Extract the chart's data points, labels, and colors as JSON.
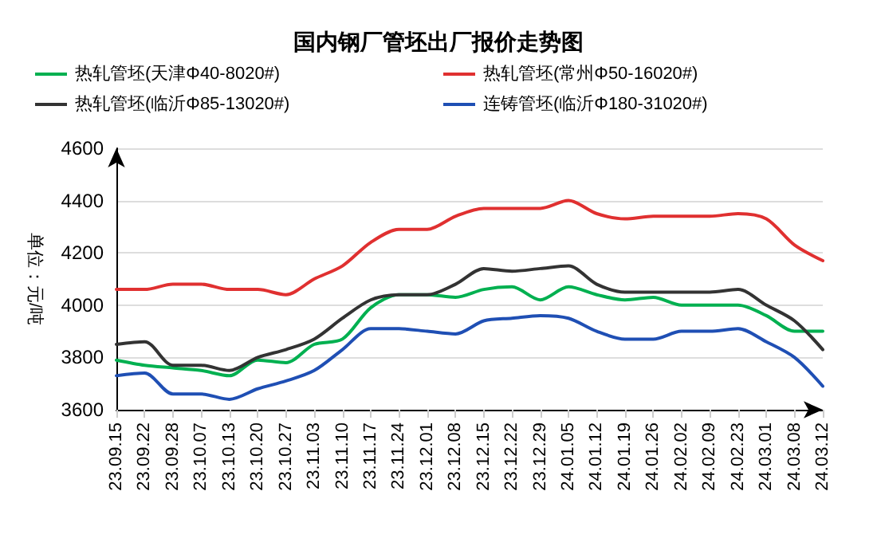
{
  "chart_data": {
    "type": "line",
    "title": "国内钢厂管坯出厂报价走势图",
    "ylabel": "单位：元/吨",
    "categories": [
      "23.09.15",
      "23.09.22",
      "23.09.28",
      "23.10.07",
      "23.10.13",
      "23.10.20",
      "23.10.27",
      "23.11.03",
      "23.11.10",
      "23.11.17",
      "23.11.24",
      "23.12.01",
      "23.12.08",
      "23.12.15",
      "23.12.22",
      "23.12.29",
      "24.01.05",
      "24.01.12",
      "24.01.19",
      "24.01.26",
      "24.02.02",
      "24.02.09",
      "24.02.23",
      "24.03.01",
      "24.03.08",
      "24.03.12"
    ],
    "series": [
      {
        "name": "热轧管坯(天津Φ40-8020#)",
        "color": "#00b050",
        "values": [
          3790,
          3770,
          3760,
          3750,
          3730,
          3790,
          3780,
          3850,
          3870,
          3990,
          4040,
          4040,
          4030,
          4060,
          4070,
          4020,
          4070,
          4040,
          4020,
          4030,
          4000,
          4000,
          4000,
          3960,
          3900,
          3900
        ]
      },
      {
        "name": "热轧管坯(常州Φ50-16020#)",
        "color": "#e03030",
        "values": [
          4060,
          4060,
          4080,
          4080,
          4060,
          4060,
          4040,
          4100,
          4150,
          4240,
          4290,
          4290,
          4340,
          4370,
          4370,
          4370,
          4400,
          4350,
          4330,
          4340,
          4340,
          4340,
          4350,
          4330,
          4230,
          4170
        ]
      },
      {
        "name": "热轧管坯(临沂Φ85-13020#)",
        "color": "#333333",
        "values": [
          3850,
          3860,
          3770,
          3770,
          3750,
          3800,
          3830,
          3870,
          3950,
          4020,
          4040,
          4040,
          4080,
          4140,
          4130,
          4140,
          4150,
          4080,
          4050,
          4050,
          4050,
          4050,
          4060,
          4000,
          3940,
          3830
        ]
      },
      {
        "name": "连铸管坯(临沂Φ180-31020#)",
        "color": "#1f4fb4",
        "values": [
          3730,
          3740,
          3660,
          3660,
          3640,
          3680,
          3710,
          3750,
          3830,
          3910,
          3910,
          3900,
          3890,
          3940,
          3950,
          3960,
          3950,
          3900,
          3870,
          3870,
          3900,
          3900,
          3910,
          3860,
          3800,
          3690
        ]
      }
    ],
    "ylim": [
      3600,
      4600
    ],
    "yticks": [
      3600,
      3800,
      4000,
      4200,
      4400,
      4600
    ],
    "grid": "y",
    "legend": "top",
    "marker": "none",
    "line_style": "solid"
  }
}
